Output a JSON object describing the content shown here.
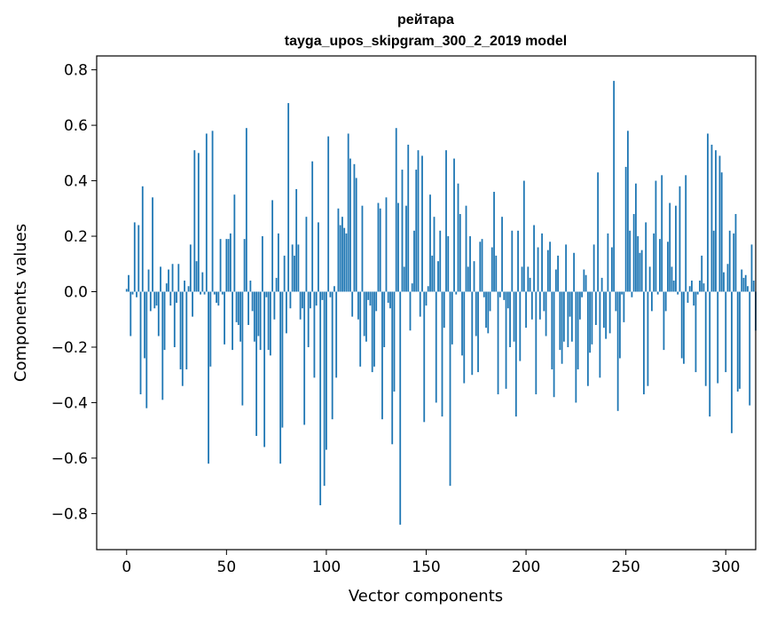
{
  "chart_data": {
    "type": "bar",
    "title": [
      "рейтара",
      "tayga_upos_skipgram_300_2_2019 model"
    ],
    "xlabel": "Vector components",
    "ylabel": "Components values",
    "xlim": [
      -15,
      315
    ],
    "ylim": [
      -0.93,
      0.85
    ],
    "xticks": [
      0,
      50,
      100,
      150,
      200,
      250,
      300
    ],
    "yticks": [
      -0.8,
      -0.6,
      -0.4,
      -0.2,
      0.0,
      0.2,
      0.4,
      0.6,
      0.8
    ],
    "ytick_labels": [
      "−0.8",
      "−0.6",
      "−0.4",
      "−0.2",
      "0.0",
      "0.2",
      "0.4",
      "0.6",
      "0.8"
    ],
    "xtick_labels": [
      "0",
      "50",
      "100",
      "150",
      "200",
      "250",
      "300"
    ],
    "bar_color": "#1f77b4",
    "grid": false,
    "legend": "none",
    "series": [
      {
        "values": [
          0.01,
          0.06,
          -0.16,
          -0.01,
          0.25,
          -0.02,
          0.24,
          -0.37,
          0.38,
          -0.24,
          -0.42,
          0.08,
          -0.07,
          0.34,
          -0.06,
          -0.05,
          -0.16,
          0.09,
          -0.39,
          -0.21,
          0.03,
          0.08,
          -0.05,
          0.1,
          -0.2,
          -0.04,
          0.1,
          -0.28,
          -0.34,
          0.04,
          -0.28,
          0.02,
          0.17,
          -0.09,
          0.51,
          0.11,
          0.5,
          -0.01,
          0.07,
          -0.01,
          0.57,
          -0.62,
          -0.27,
          0.58,
          -0.01,
          -0.04,
          -0.05,
          0.19,
          -0.01,
          -0.19,
          0.19,
          0.19,
          0.21,
          -0.21,
          0.35,
          -0.11,
          -0.12,
          -0.18,
          -0.41,
          0.19,
          0.59,
          -0.12,
          0.04,
          -0.07,
          -0.18,
          -0.52,
          -0.16,
          -0.21,
          0.2,
          -0.56,
          -0.02,
          -0.21,
          -0.23,
          0.33,
          -0.1,
          0.05,
          0.21,
          -0.62,
          -0.49,
          0.13,
          -0.15,
          0.68,
          -0.06,
          0.17,
          0.13,
          0.37,
          0.17,
          -0.1,
          -0.06,
          -0.48,
          0.27,
          -0.2,
          -0.06,
          0.47,
          -0.31,
          -0.05,
          0.25,
          -0.77,
          -0.03,
          -0.7,
          -0.57,
          0.56,
          -0.02,
          -0.46,
          0.02,
          -0.31,
          0.3,
          0.24,
          0.27,
          0.23,
          0.21,
          0.57,
          0.48,
          -0.09,
          0.46,
          0.41,
          -0.1,
          -0.27,
          0.31,
          -0.16,
          -0.18,
          -0.03,
          -0.05,
          -0.29,
          -0.27,
          -0.07,
          0.32,
          0.3,
          -0.46,
          -0.2,
          0.34,
          -0.04,
          -0.06,
          -0.55,
          -0.36,
          0.59,
          0.32,
          -0.84,
          0.44,
          0.09,
          0.31,
          0.53,
          -0.14,
          0.03,
          0.22,
          0.44,
          0.51,
          -0.09,
          0.49,
          -0.47,
          -0.05,
          0.02,
          0.35,
          0.13,
          0.27,
          -0.4,
          0.11,
          0.22,
          -0.45,
          -0.13,
          0.51,
          0.2,
          -0.7,
          -0.19,
          0.48,
          -0.01,
          0.39,
          0.28,
          -0.23,
          -0.33,
          0.31,
          0.09,
          0.2,
          -0.3,
          0.11,
          -0.16,
          -0.29,
          0.18,
          0.19,
          -0.02,
          -0.13,
          -0.15,
          -0.07,
          0.16,
          0.36,
          0.13,
          -0.37,
          -0.02,
          0.27,
          -0.03,
          -0.35,
          -0.06,
          -0.2,
          0.22,
          -0.18,
          -0.45,
          0.22,
          -0.25,
          0.09,
          0.4,
          -0.13,
          0.09,
          0.05,
          -0.1,
          0.24,
          -0.37,
          0.16,
          -0.1,
          0.21,
          -0.07,
          -0.16,
          0.15,
          0.18,
          -0.28,
          -0.38,
          0.08,
          0.13,
          -0.21,
          -0.26,
          -0.18,
          0.17,
          -0.2,
          -0.09,
          -0.18,
          0.14,
          -0.4,
          -0.28,
          -0.1,
          -0.02,
          0.08,
          0.06,
          -0.34,
          -0.22,
          -0.19,
          0.17,
          -0.12,
          0.43,
          -0.31,
          0.05,
          -0.13,
          -0.17,
          0.21,
          -0.15,
          0.16,
          0.76,
          -0.07,
          -0.43,
          -0.24,
          -0.01,
          -0.11,
          0.45,
          0.58,
          0.22,
          -0.02,
          0.28,
          0.39,
          0.2,
          0.14,
          0.15,
          -0.37,
          0.25,
          -0.34,
          0.09,
          -0.07,
          0.21,
          0.4,
          -0.01,
          0.19,
          0.42,
          -0.21,
          -0.07,
          0.18,
          0.32,
          0.09,
          0.04,
          0.31,
          -0.01,
          0.38,
          -0.24,
          -0.26,
          0.42,
          -0.04,
          0.02,
          0.04,
          -0.05,
          -0.29,
          -0.01,
          0.04,
          0.13,
          0.03,
          -0.34,
          0.57,
          -0.45,
          0.53,
          0.22,
          0.51,
          -0.33,
          0.49,
          0.43,
          0.07,
          -0.29,
          0.1,
          0.22,
          -0.51,
          0.21,
          0.28,
          -0.36,
          -0.35,
          0.08,
          0.05,
          0.06,
          0.02,
          -0.41,
          0.17,
          0.04,
          -0.14
        ]
      }
    ]
  }
}
